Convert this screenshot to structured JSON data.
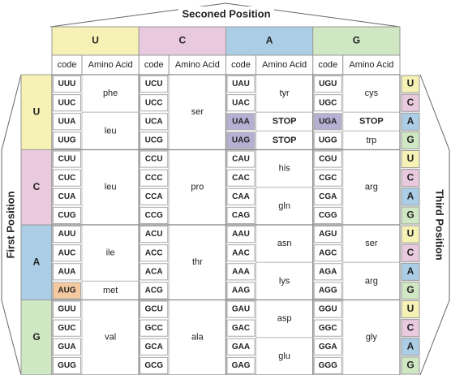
{
  "second_position": {
    "title": "Seconed Position",
    "columns": [
      {
        "label": "U",
        "code": "code",
        "amino": "Amino Acid"
      },
      {
        "label": "C",
        "code": "code",
        "amino": "Amino Acid"
      },
      {
        "label": "A",
        "code": "code",
        "amino": "Amino Acid"
      },
      {
        "label": "G",
        "code": "code",
        "amino": "Amino Acid"
      }
    ]
  },
  "first_position": {
    "title": "First Position"
  },
  "third_position": {
    "title": "Third Position"
  },
  "blocks": [
    {
      "first": "U",
      "third": [
        "U",
        "C",
        "A",
        "G"
      ],
      "columns": [
        {
          "codons": [
            "UUU",
            "UUC",
            "UUA",
            "UUG"
          ],
          "aminos": [
            "phe",
            null,
            "leu",
            null
          ]
        },
        {
          "codons": [
            "UCU",
            "UCC",
            "UCA",
            "UCG"
          ],
          "aminos": [
            "ser",
            null,
            null,
            null
          ]
        },
        {
          "codons": [
            "UAU",
            "UAC",
            "UAA",
            "UAG"
          ],
          "aminos": [
            "tyr",
            null,
            "STOP",
            "STOP"
          ]
        },
        {
          "codons": [
            "UGU",
            "UGC",
            "UGA",
            "UGG"
          ],
          "aminos": [
            "cys",
            null,
            "STOP",
            "trp"
          ]
        }
      ]
    },
    {
      "first": "C",
      "third": [
        "U",
        "C",
        "A",
        "G"
      ],
      "columns": [
        {
          "codons": [
            "CUU",
            "CUC",
            "CUA",
            "CUG"
          ],
          "aminos": [
            "leu",
            null,
            null,
            null
          ]
        },
        {
          "codons": [
            "CCU",
            "CCC",
            "CCA",
            "CCG"
          ],
          "aminos": [
            "pro",
            null,
            null,
            null
          ]
        },
        {
          "codons": [
            "CAU",
            "CAC",
            "CAA",
            "CAG"
          ],
          "aminos": [
            "his",
            null,
            "gln",
            null
          ]
        },
        {
          "codons": [
            "CGU",
            "CGC",
            "CGA",
            "CGG"
          ],
          "aminos": [
            "arg",
            null,
            null,
            null
          ]
        }
      ]
    },
    {
      "first": "A",
      "third": [
        "U",
        "C",
        "A",
        "G"
      ],
      "columns": [
        {
          "codons": [
            "AUU",
            "AUC",
            "AUA",
            "AUG"
          ],
          "aminos": [
            "ile",
            null,
            null,
            "met"
          ]
        },
        {
          "codons": [
            "ACU",
            "ACC",
            "ACA",
            "ACG"
          ],
          "aminos": [
            "thr",
            null,
            null,
            null
          ]
        },
        {
          "codons": [
            "AAU",
            "AAC",
            "AAA",
            "AAG"
          ],
          "aminos": [
            "asn",
            null,
            "lys",
            null
          ]
        },
        {
          "codons": [
            "AGU",
            "AGC",
            "AGA",
            "AGG"
          ],
          "aminos": [
            "ser",
            null,
            "arg",
            null
          ]
        }
      ]
    },
    {
      "first": "G",
      "third": [
        "U",
        "C",
        "A",
        "G"
      ],
      "columns": [
        {
          "codons": [
            "GUU",
            "GUC",
            "GUA",
            "GUG"
          ],
          "aminos": [
            "val",
            null,
            null,
            null
          ]
        },
        {
          "codons": [
            "GCU",
            "GCC",
            "GCA",
            "GCG"
          ],
          "aminos": [
            "ala",
            null,
            null,
            null
          ]
        },
        {
          "codons": [
            "GAU",
            "GAC",
            "GAA",
            "GAG"
          ],
          "aminos": [
            "asp",
            null,
            "glu",
            null
          ]
        },
        {
          "codons": [
            "GGU",
            "GGC",
            "GGA",
            "GGG"
          ],
          "aminos": [
            "gly",
            null,
            null,
            null
          ]
        }
      ]
    }
  ]
}
